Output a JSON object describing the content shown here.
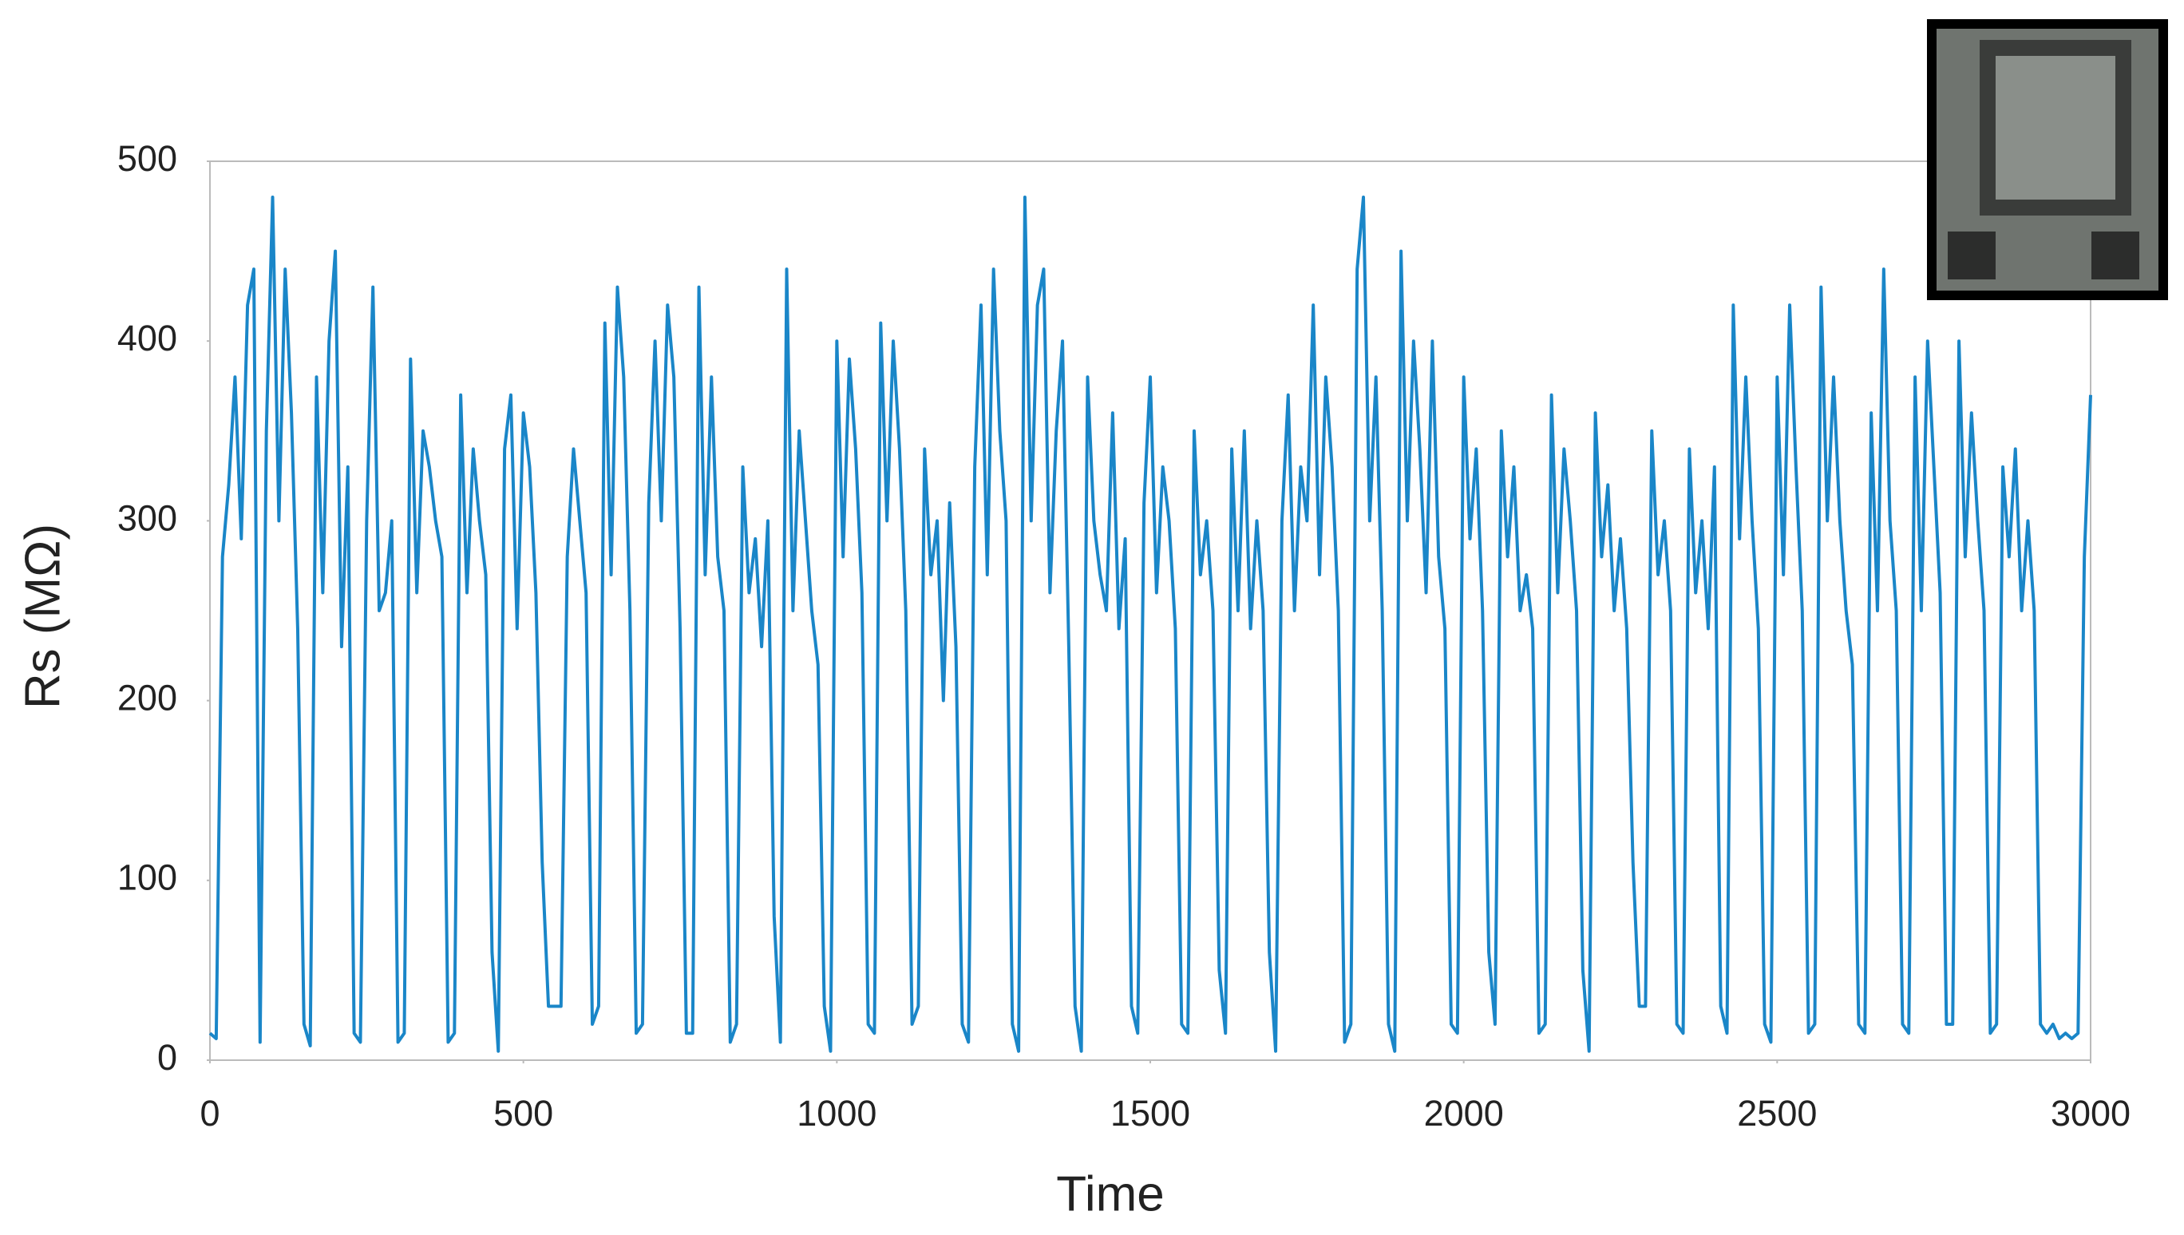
{
  "chart_data": {
    "type": "line",
    "xlabel": "Time",
    "ylabel": "Rs (MΩ)",
    "x": [
      0,
      10,
      20,
      30,
      40,
      50,
      60,
      70,
      80,
      90,
      100,
      110,
      120,
      130,
      140,
      150,
      160,
      170,
      180,
      190,
      200,
      210,
      220,
      230,
      240,
      250,
      260,
      270,
      280,
      290,
      300,
      310,
      320,
      330,
      340,
      350,
      360,
      370,
      380,
      390,
      400,
      410,
      420,
      430,
      440,
      450,
      460,
      470,
      480,
      490,
      500,
      510,
      520,
      530,
      540,
      550,
      560,
      570,
      580,
      590,
      600,
      610,
      620,
      630,
      640,
      650,
      660,
      670,
      680,
      690,
      700,
      710,
      720,
      730,
      740,
      750,
      760,
      770,
      780,
      790,
      800,
      810,
      820,
      830,
      840,
      850,
      860,
      870,
      880,
      890,
      900,
      910,
      920,
      930,
      940,
      950,
      960,
      970,
      980,
      990,
      1000,
      1010,
      1020,
      1030,
      1040,
      1050,
      1060,
      1070,
      1080,
      1090,
      1100,
      1110,
      1120,
      1130,
      1140,
      1150,
      1160,
      1170,
      1180,
      1190,
      1200,
      1210,
      1220,
      1230,
      1240,
      1250,
      1260,
      1270,
      1280,
      1290,
      1300,
      1310,
      1320,
      1330,
      1340,
      1350,
      1360,
      1370,
      1380,
      1390,
      1400,
      1410,
      1420,
      1430,
      1440,
      1450,
      1460,
      1470,
      1480,
      1490,
      1500,
      1510,
      1520,
      1530,
      1540,
      1550,
      1560,
      1570,
      1580,
      1590,
      1600,
      1610,
      1620,
      1630,
      1640,
      1650,
      1660,
      1670,
      1680,
      1690,
      1700,
      1710,
      1720,
      1730,
      1740,
      1750,
      1760,
      1770,
      1780,
      1790,
      1800,
      1810,
      1820,
      1830,
      1840,
      1850,
      1860,
      1870,
      1880,
      1890,
      1900,
      1910,
      1920,
      1930,
      1940,
      1950,
      1960,
      1970,
      1980,
      1990,
      2000,
      2010,
      2020,
      2030,
      2040,
      2050,
      2060,
      2070,
      2080,
      2090,
      2100,
      2110,
      2120,
      2130,
      2140,
      2150,
      2160,
      2170,
      2180,
      2190,
      2200,
      2210,
      2220,
      2230,
      2240,
      2250,
      2260,
      2270,
      2280,
      2290,
      2300,
      2310,
      2320,
      2330,
      2340,
      2350,
      2360,
      2370,
      2380,
      2390,
      2400,
      2410,
      2420,
      2430,
      2440,
      2450,
      2460,
      2470,
      2480,
      2490,
      2500,
      2510,
      2520,
      2530,
      2540,
      2550,
      2560,
      2570,
      2580,
      2590,
      2600,
      2610,
      2620,
      2630,
      2640,
      2650,
      2660,
      2670,
      2680,
      2690,
      2700,
      2710,
      2720,
      2730,
      2740,
      2750,
      2760,
      2770,
      2780,
      2790,
      2800,
      2810,
      2820,
      2830,
      2840,
      2850,
      2860,
      2870,
      2880,
      2890,
      2900,
      2910,
      2920,
      2930,
      2940,
      2950,
      2960,
      2970,
      2980,
      2990,
      3000
    ],
    "series": [
      {
        "color": "#1a86c8",
        "values": [
          15,
          12,
          280,
          320,
          380,
          290,
          420,
          440,
          10,
          350,
          480,
          300,
          440,
          360,
          240,
          20,
          8,
          380,
          260,
          400,
          450,
          230,
          330,
          15,
          10,
          300,
          430,
          250,
          260,
          300,
          10,
          15,
          390,
          260,
          350,
          330,
          300,
          280,
          10,
          15,
          370,
          260,
          340,
          300,
          270,
          60,
          5,
          340,
          370,
          240,
          360,
          330,
          260,
          110,
          30,
          30,
          30,
          280,
          340,
          300,
          260,
          20,
          30,
          410,
          270,
          430,
          380,
          250,
          15,
          20,
          310,
          400,
          300,
          420,
          380,
          240,
          15,
          15,
          430,
          270,
          380,
          280,
          250,
          10,
          20,
          330,
          260,
          290,
          230,
          300,
          80,
          10,
          440,
          250,
          350,
          300,
          250,
          220,
          30,
          5,
          400,
          280,
          390,
          340,
          260,
          20,
          15,
          410,
          300,
          400,
          340,
          250,
          20,
          30,
          340,
          270,
          300,
          200,
          310,
          230,
          20,
          10,
          330,
          420,
          270,
          440,
          350,
          300,
          20,
          5,
          480,
          300,
          420,
          440,
          260,
          350,
          400,
          230,
          30,
          5,
          380,
          300,
          270,
          250,
          360,
          240,
          290,
          30,
          15,
          310,
          380,
          260,
          330,
          300,
          240,
          20,
          15,
          350,
          270,
          300,
          250,
          50,
          15,
          340,
          250,
          350,
          240,
          300,
          250,
          60,
          5,
          300,
          370,
          250,
          330,
          300,
          420,
          270,
          380,
          330,
          250,
          10,
          20,
          440,
          480,
          300,
          380,
          250,
          20,
          5,
          450,
          300,
          400,
          340,
          260,
          400,
          280,
          240,
          20,
          15,
          380,
          290,
          340,
          250,
          60,
          20,
          350,
          280,
          330,
          250,
          270,
          240,
          15,
          20,
          370,
          260,
          340,
          300,
          250,
          50,
          5,
          360,
          280,
          320,
          250,
          290,
          240,
          110,
          30,
          30,
          350,
          270,
          300,
          250,
          20,
          15,
          340,
          260,
          300,
          240,
          330,
          30,
          15,
          420,
          290,
          380,
          300,
          240,
          20,
          10,
          380,
          270,
          420,
          330,
          250,
          15,
          20,
          430,
          300,
          380,
          300,
          250,
          220,
          20,
          15,
          360,
          250,
          440,
          300,
          250,
          20,
          15,
          380,
          250,
          400,
          330,
          260,
          20,
          20,
          400,
          280,
          360,
          300,
          250,
          15,
          20,
          330,
          280,
          340,
          250,
          300,
          250,
          20,
          15,
          20,
          12,
          15,
          12,
          15,
          280,
          370
        ]
      }
    ],
    "xlim": [
      0,
      3000
    ],
    "xticks": [
      0,
      500,
      1000,
      1500,
      2000,
      2500,
      3000
    ],
    "ylim": [
      0,
      500
    ],
    "yticks": [
      0,
      100,
      200,
      300,
      400,
      500
    ],
    "grid": false
  }
}
